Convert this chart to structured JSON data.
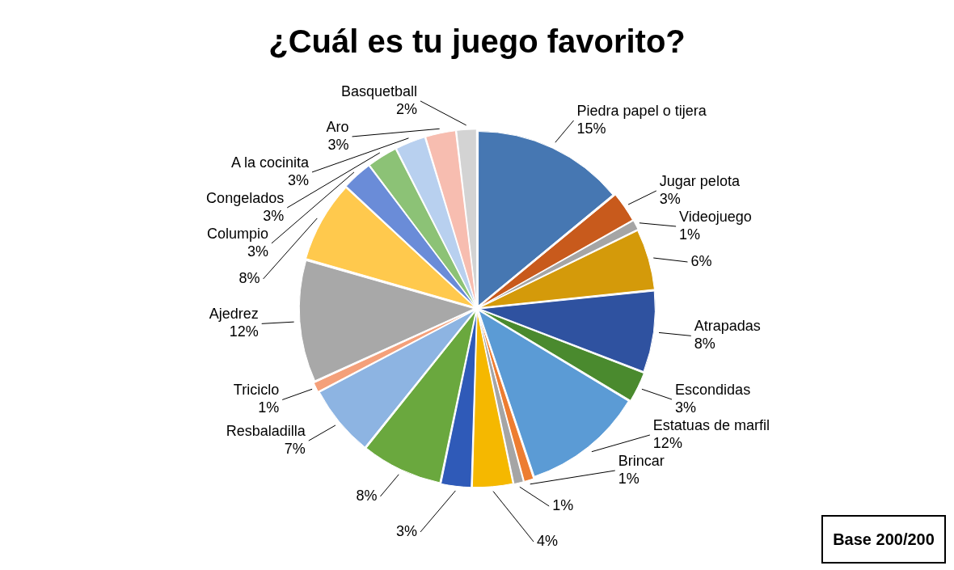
{
  "chart_data": {
    "type": "pie",
    "title": "¿Cuál es tu juego favorito?",
    "categories": [
      "Piedra papel o tijera",
      "Jugar pelota",
      "Videojuego",
      null,
      "Atrapadas",
      "Escondidas",
      "Estatuas de marfil",
      "Brincar",
      null,
      null,
      null,
      null,
      "Resbaladilla",
      "Triciclo",
      "Ajedrez",
      null,
      "Columpio",
      "Congelados",
      "A la cocinita",
      "Aro",
      "Basquetball"
    ],
    "values": [
      15,
      3,
      1,
      6,
      8,
      3,
      12,
      1,
      1,
      4,
      3,
      8,
      7,
      1,
      12,
      8,
      3,
      3,
      3,
      3,
      2
    ],
    "value_labels": [
      "15%",
      "3%",
      "1%",
      "6%",
      "8%",
      "3%",
      "12%",
      "1%",
      "1%",
      "4%",
      "3%",
      "8%",
      "7%",
      "1%",
      "12%",
      "8%",
      "3%",
      "3%",
      "3%",
      "3%",
      "2%"
    ],
    "colors": [
      "#4677b2",
      "#c85a1c",
      "#a5a5a5",
      "#d49a0a",
      "#2f52a0",
      "#4a8a2e",
      "#5b9bd5",
      "#ed7d31",
      "#a5a5a5",
      "#f5b800",
      "#2f5ab8",
      "#6aa83e",
      "#8db4e2",
      "#f4a07a",
      "#a8a8a8",
      "#ffc94d",
      "#6a8cd8",
      "#8cc276",
      "#b8d0ef",
      "#f7bdb0",
      "#d3d3d3"
    ],
    "legend": false,
    "annotations": [
      "Base 200/200"
    ]
  }
}
